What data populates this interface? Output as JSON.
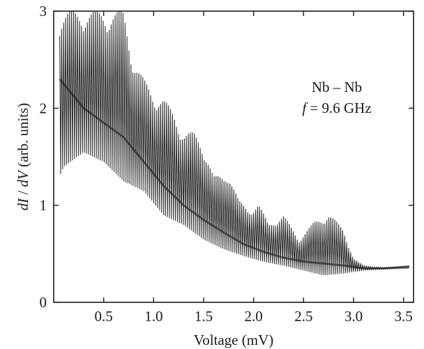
{
  "chart_data": {
    "type": "line",
    "title": "",
    "xlabel": "Voltage (mV)",
    "ylabel_parts": {
      "var1": "dI",
      "sep": " / ",
      "var2": "dV",
      "rest": " (arb. units)"
    },
    "xlim": [
      0.0,
      3.6
    ],
    "ylim": [
      0,
      3
    ],
    "x_ticks": [
      0.5,
      1.0,
      1.5,
      2.0,
      2.5,
      3.0,
      3.5
    ],
    "x_tick_labels": [
      "0.5",
      "1.0",
      "1.5",
      "2.0",
      "2.5",
      "3.0",
      "3.5"
    ],
    "y_ticks": [
      0,
      1,
      2,
      3
    ],
    "y_tick_labels": [
      "0",
      "1",
      "2",
      "3"
    ],
    "grid": false,
    "annotation": {
      "line1": "Nb – Nb",
      "line2_var": "f",
      "line2_rest": " = 9.6 GHz"
    },
    "series": [
      {
        "upper_envelope": [
          [
            0.06,
            3.0
          ],
          [
            0.3,
            3.0
          ],
          [
            0.5,
            3.0
          ],
          [
            0.7,
            3.0
          ],
          [
            0.8,
            2.5
          ],
          [
            0.9,
            2.3
          ],
          [
            1.0,
            2.15
          ],
          [
            1.1,
            2.1
          ],
          [
            1.2,
            1.95
          ],
          [
            1.3,
            1.75
          ],
          [
            1.4,
            1.75
          ],
          [
            1.5,
            1.62
          ],
          [
            1.6,
            1.3
          ],
          [
            1.7,
            1.3
          ],
          [
            1.75,
            1.35
          ],
          [
            1.85,
            1.05
          ],
          [
            1.95,
            0.95
          ],
          [
            2.05,
            1.02
          ],
          [
            2.15,
            0.8
          ],
          [
            2.3,
            0.9
          ],
          [
            2.45,
            0.65
          ],
          [
            2.6,
            0.82
          ],
          [
            2.75,
            0.92
          ],
          [
            2.9,
            0.75
          ],
          [
            3.0,
            0.45
          ],
          [
            3.1,
            0.38
          ],
          [
            3.3,
            0.36
          ],
          [
            3.5,
            0.37
          ],
          [
            3.56,
            0.37
          ]
        ],
        "lower_envelope": [
          [
            0.06,
            1.3
          ],
          [
            0.1,
            1.4
          ],
          [
            0.3,
            1.55
          ],
          [
            0.5,
            1.45
          ],
          [
            0.7,
            1.25
          ],
          [
            0.9,
            1.15
          ],
          [
            1.1,
            0.9
          ],
          [
            1.3,
            0.8
          ],
          [
            1.5,
            0.65
          ],
          [
            1.7,
            0.55
          ],
          [
            1.9,
            0.48
          ],
          [
            2.1,
            0.42
          ],
          [
            2.3,
            0.38
          ],
          [
            2.5,
            0.33
          ],
          [
            2.7,
            0.28
          ],
          [
            2.9,
            0.3
          ],
          [
            3.1,
            0.33
          ],
          [
            3.3,
            0.34
          ],
          [
            3.56,
            0.35
          ]
        ],
        "baseline": [
          [
            0.06,
            2.3
          ],
          [
            0.3,
            2.0
          ],
          [
            0.5,
            1.85
          ],
          [
            0.7,
            1.7
          ],
          [
            0.9,
            1.45
          ],
          [
            1.1,
            1.2
          ],
          [
            1.3,
            1.0
          ],
          [
            1.5,
            0.85
          ],
          [
            1.7,
            0.72
          ],
          [
            1.9,
            0.6
          ],
          [
            2.1,
            0.52
          ],
          [
            2.3,
            0.46
          ],
          [
            2.5,
            0.42
          ],
          [
            2.7,
            0.4
          ],
          [
            2.9,
            0.38
          ],
          [
            3.1,
            0.35
          ],
          [
            3.3,
            0.35
          ],
          [
            3.56,
            0.37
          ]
        ],
        "oscillation_period": 0.0198
      }
    ]
  }
}
